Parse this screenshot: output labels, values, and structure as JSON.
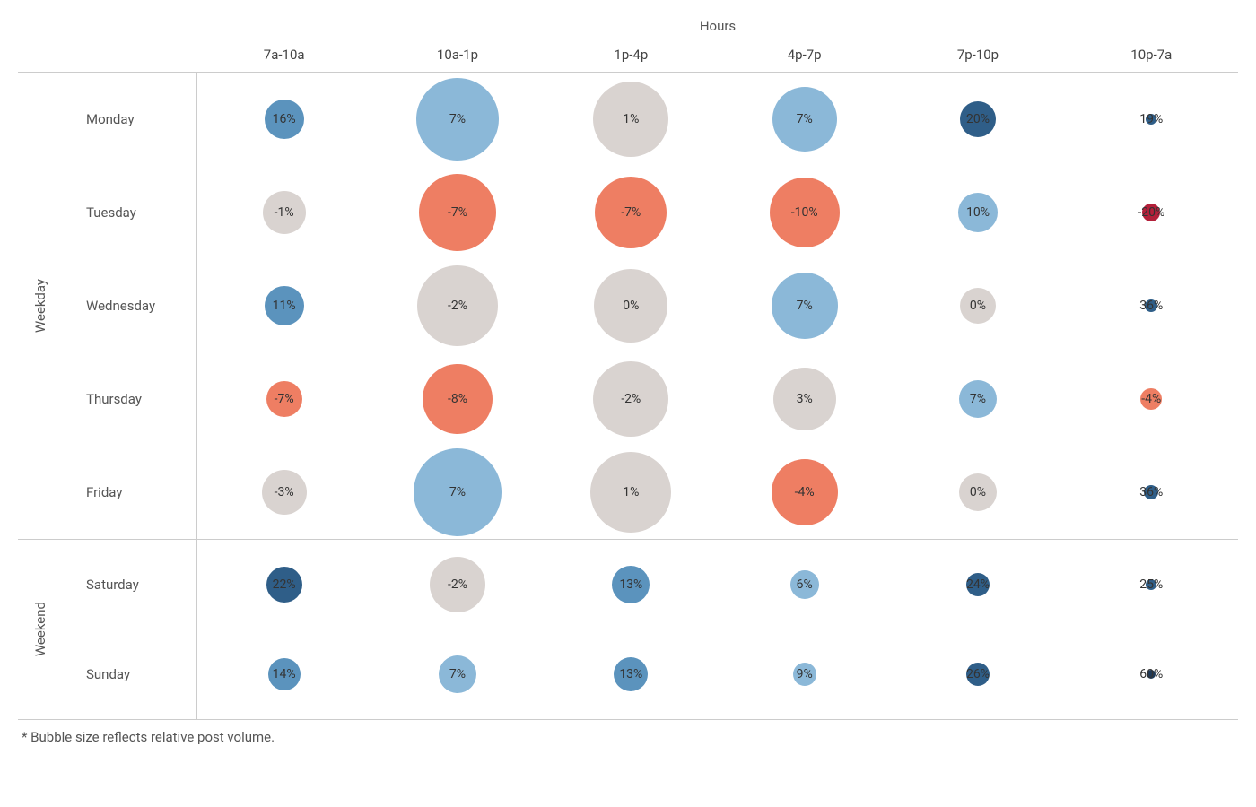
{
  "chart": {
    "type": "bubble-matrix",
    "title": "Hours",
    "footnote": "* Bubble size reflects relative post volume.",
    "font_family": "sans-serif",
    "title_fontsize": 15,
    "label_fontsize": 15,
    "value_fontsize": 14,
    "text_color": "#444444",
    "grid_line_color": "#cccccc",
    "background_color": "#ffffff",
    "row_height_weekday": 104,
    "row_height_weekend": 100,
    "day_label_width": 150,
    "group_label_width": 50,
    "columns": [
      "7a-10a",
      "10a-1p",
      "1p-4p",
      "4p-7p",
      "7p-10p",
      "10p-7a"
    ],
    "groups": [
      {
        "label": "Weekday",
        "days": [
          "Monday",
          "Tuesday",
          "Wednesday",
          "Thursday",
          "Friday"
        ]
      },
      {
        "label": "Weekend",
        "days": [
          "Saturday",
          "Sunday"
        ]
      }
    ],
    "color_scale_note": "diverging blue-grey-red by percent; size by volume",
    "palette": {
      "neg_strong": "#c0392b",
      "neg": "#ee7e63",
      "neutral": "#d9d3d0",
      "pos_light": "#8bb8d8",
      "pos": "#5b93bd",
      "pos_strong": "#2f5e88"
    },
    "cells": {
      "Monday": [
        {
          "pct": "16%",
          "size": 44,
          "color": "#5b93bd"
        },
        {
          "pct": "7%",
          "size": 92,
          "color": "#8bb8d8"
        },
        {
          "pct": "1%",
          "size": 84,
          "color": "#d9d3d0"
        },
        {
          "pct": "7%",
          "size": 72,
          "color": "#8bb8d8"
        },
        {
          "pct": "20%",
          "size": 40,
          "color": "#2f5e88"
        },
        {
          "pct": "19%",
          "size": 12,
          "color": "#2f5e88"
        }
      ],
      "Tuesday": [
        {
          "pct": "-1%",
          "size": 48,
          "color": "#d9d3d0"
        },
        {
          "pct": "-7%",
          "size": 86,
          "color": "#ee7e63"
        },
        {
          "pct": "-7%",
          "size": 80,
          "color": "#ee7e63"
        },
        {
          "pct": "-10%",
          "size": 78,
          "color": "#ee7e63"
        },
        {
          "pct": "10%",
          "size": 44,
          "color": "#8bb8d8"
        },
        {
          "pct": "-20%",
          "size": 20,
          "color": "#b3203a"
        }
      ],
      "Wednesday": [
        {
          "pct": "11%",
          "size": 44,
          "color": "#5b93bd"
        },
        {
          "pct": "-2%",
          "size": 90,
          "color": "#d9d3d0"
        },
        {
          "pct": "0%",
          "size": 82,
          "color": "#d9d3d0"
        },
        {
          "pct": "7%",
          "size": 74,
          "color": "#8bb8d8"
        },
        {
          "pct": "0%",
          "size": 40,
          "color": "#d9d3d0"
        },
        {
          "pct": "36%",
          "size": 14,
          "color": "#2f5e88"
        }
      ],
      "Thursday": [
        {
          "pct": "-7%",
          "size": 40,
          "color": "#ee7e63"
        },
        {
          "pct": "-8%",
          "size": 78,
          "color": "#ee7e63"
        },
        {
          "pct": "-2%",
          "size": 84,
          "color": "#d9d3d0"
        },
        {
          "pct": "3%",
          "size": 70,
          "color": "#d9d3d0"
        },
        {
          "pct": "7%",
          "size": 42,
          "color": "#8bb8d8"
        },
        {
          "pct": "-4%",
          "size": 24,
          "color": "#ee7e63"
        }
      ],
      "Friday": [
        {
          "pct": "-3%",
          "size": 50,
          "color": "#d9d3d0"
        },
        {
          "pct": "7%",
          "size": 98,
          "color": "#8bb8d8"
        },
        {
          "pct": "1%",
          "size": 90,
          "color": "#d9d3d0"
        },
        {
          "pct": "-4%",
          "size": 74,
          "color": "#ee7e63"
        },
        {
          "pct": "0%",
          "size": 42,
          "color": "#d9d3d0"
        },
        {
          "pct": "36%",
          "size": 16,
          "color": "#2f5e88"
        }
      ],
      "Saturday": [
        {
          "pct": "22%",
          "size": 40,
          "color": "#2f5e88"
        },
        {
          "pct": "-2%",
          "size": 62,
          "color": "#d9d3d0"
        },
        {
          "pct": "13%",
          "size": 42,
          "color": "#5b93bd"
        },
        {
          "pct": "6%",
          "size": 32,
          "color": "#8bb8d8"
        },
        {
          "pct": "24%",
          "size": 26,
          "color": "#2f5e88"
        },
        {
          "pct": "25%",
          "size": 12,
          "color": "#2f5e88"
        }
      ],
      "Sunday": [
        {
          "pct": "14%",
          "size": 36,
          "color": "#5b93bd"
        },
        {
          "pct": "7%",
          "size": 42,
          "color": "#8bb8d8"
        },
        {
          "pct": "13%",
          "size": 38,
          "color": "#5b93bd"
        },
        {
          "pct": "9%",
          "size": 26,
          "color": "#8bb8d8"
        },
        {
          "pct": "26%",
          "size": 26,
          "color": "#2f5e88"
        },
        {
          "pct": "60%",
          "size": 10,
          "color": "#1f3a57"
        }
      ]
    }
  }
}
